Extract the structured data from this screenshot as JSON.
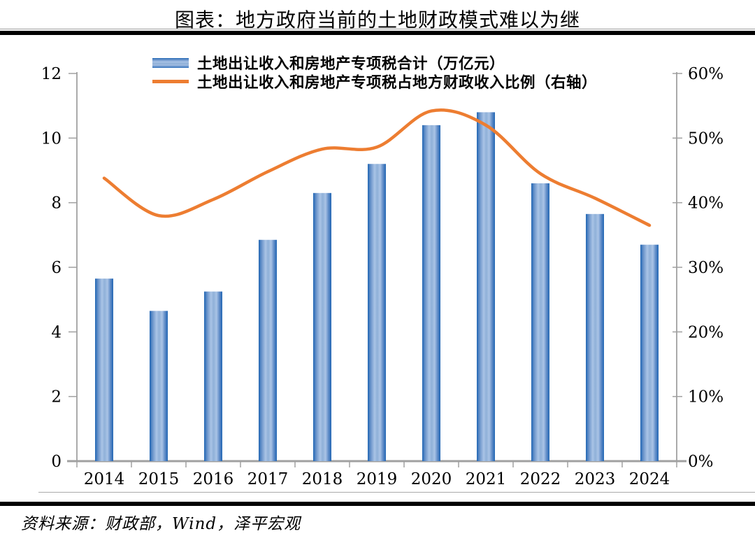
{
  "page": {
    "title": "图表：地方政府当前的土地财政模式难以为继",
    "source": "资料来源：财政部，Wind，泽平宏观"
  },
  "legend": {
    "bar_label": "土地出让收入和房地产专项税合计（万亿元）",
    "line_label": "土地出让收入和房地产专项税占地方财政收入比例（右轴）"
  },
  "chart_data": {
    "type": "bar",
    "subtype": "bar+line dual axis",
    "title": "图表：地方政府当前的土地财政模式难以为继",
    "categories": [
      "2014",
      "2015",
      "2016",
      "2017",
      "2018",
      "2019",
      "2020",
      "2021",
      "2022",
      "2023",
      "2024"
    ],
    "series": [
      {
        "name": "土地出让收入和房地产专项税合计（万亿元）",
        "type": "bar",
        "axis": "left",
        "values": [
          5.65,
          4.65,
          5.25,
          6.85,
          8.3,
          9.2,
          10.4,
          10.8,
          8.6,
          7.65,
          6.7
        ]
      },
      {
        "name": "土地出让收入和房地产专项税占地方财政收入比例（右轴）",
        "type": "line",
        "axis": "right",
        "values_percent": [
          43.8,
          38.0,
          40.5,
          44.8,
          48.3,
          48.6,
          54.2,
          52.0,
          44.5,
          40.7,
          36.5
        ]
      }
    ],
    "left_axis": {
      "min": 0,
      "max": 12,
      "tick_labels": [
        "0",
        "2",
        "4",
        "6",
        "8",
        "10",
        "12"
      ]
    },
    "right_axis": {
      "min": 0,
      "max": 60,
      "tick_labels": [
        "0%",
        "10%",
        "20%",
        "30%",
        "40%",
        "50%",
        "60%"
      ]
    },
    "grid": false,
    "legend_position": "top-center",
    "source": "资料来源：财政部，Wind，泽平宏观"
  },
  "colors": {
    "bar_edge": "#2166b4",
    "bar_light": "#aac4e6",
    "bar_mid": "#8fb0d8",
    "line": "#ed7d31",
    "axis": "#a0a0a0",
    "rule": "#000000",
    "text": "#000000"
  }
}
